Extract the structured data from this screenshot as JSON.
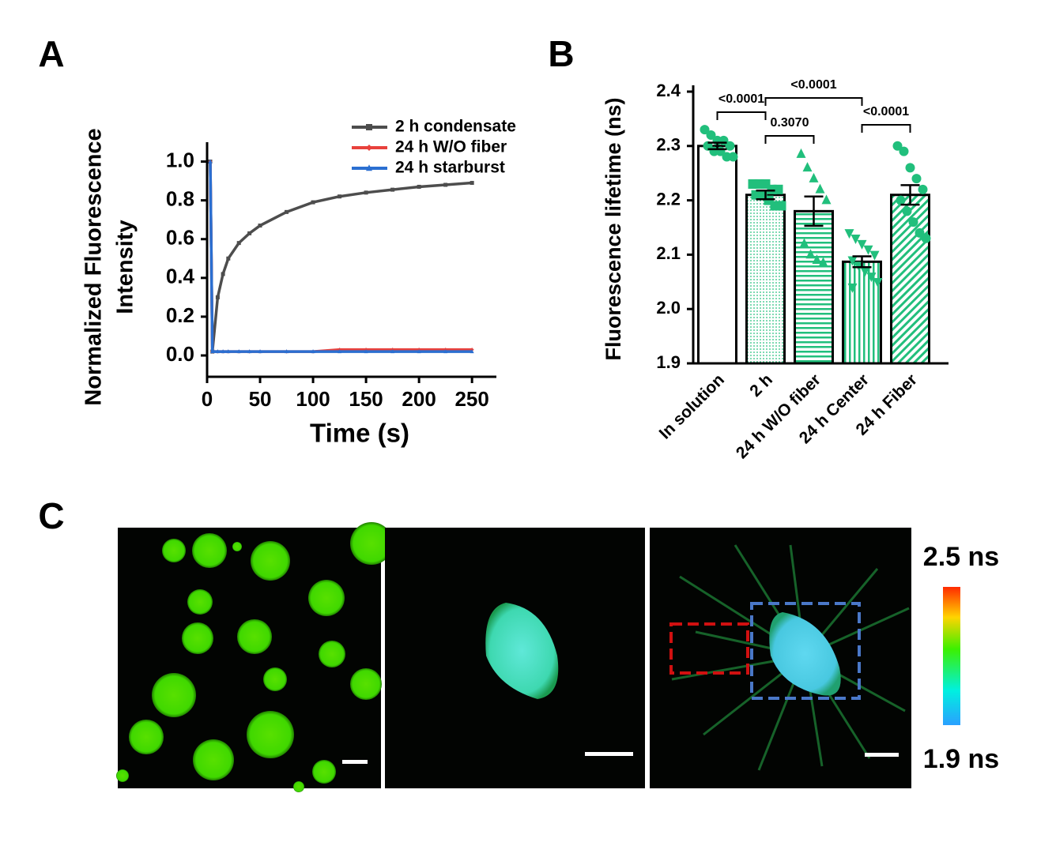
{
  "chart_data": [
    {
      "type": "line",
      "panel": "A",
      "x_label": "Time (s)",
      "y_label": [
        "Normalized Fluorescence",
        "Intensity"
      ],
      "x": [
        3,
        5,
        10,
        15,
        20,
        30,
        40,
        50,
        75,
        100,
        125,
        150,
        175,
        200,
        225,
        250
      ],
      "series": [
        {
          "name": "2 h condensate",
          "color": "#4d4d4d",
          "marker": "square",
          "values": [
            1.0,
            0.02,
            0.3,
            0.42,
            0.5,
            0.58,
            0.63,
            0.67,
            0.74,
            0.79,
            0.82,
            0.84,
            0.855,
            0.87,
            0.88,
            0.89
          ]
        },
        {
          "name": "24 h W/O fiber",
          "color": "#e8413c",
          "marker": "diamond",
          "values": [
            1.0,
            0.02,
            0.02,
            0.02,
            0.02,
            0.02,
            0.02,
            0.02,
            0.02,
            0.02,
            0.03,
            0.03,
            0.03,
            0.03,
            0.03,
            0.03
          ]
        },
        {
          "name": "24 h starburst",
          "color": "#2b6fd1",
          "marker": "triangle",
          "values": [
            1.0,
            0.02,
            0.02,
            0.02,
            0.02,
            0.02,
            0.02,
            0.02,
            0.02,
            0.02,
            0.02,
            0.02,
            0.02,
            0.02,
            0.02,
            0.02
          ]
        }
      ],
      "xlim": [
        0,
        273
      ],
      "xticks": [
        0,
        50,
        100,
        150,
        200,
        250
      ],
      "ylim": [
        -0.11,
        1.1
      ],
      "yticks": [
        {
          "value": 0,
          "label": "0.0"
        },
        0.2,
        0.4,
        0.6,
        0.8,
        {
          "value": 1,
          "label": "1.0"
        }
      ],
      "legend": "upper right"
    },
    {
      "type": "bar",
      "panel": "B",
      "y_label": "Fluorescence  lifetime (ns)",
      "categories": [
        "In solution",
        "2 h",
        "24 h W/O fiber",
        "24 h Center",
        "24 h Fiber"
      ],
      "values": [
        2.3,
        2.21,
        2.18,
        2.087,
        2.21
      ],
      "errors": [
        0.006,
        0.008,
        0.027,
        0.01,
        0.018
      ],
      "points": [
        [
          2.33,
          2.32,
          2.31,
          2.31,
          2.3,
          2.3,
          2.29,
          2.29,
          2.28,
          2.28
        ],
        [
          2.23,
          2.23,
          2.23,
          2.22,
          2.22,
          2.21,
          2.21,
          2.2,
          2.19,
          2.19
        ],
        [
          2.285,
          2.26,
          2.24,
          2.22,
          2.2,
          2.12,
          2.1,
          2.09,
          2.085
        ],
        [
          2.14,
          2.13,
          2.12,
          2.11,
          2.1,
          2.09,
          2.08,
          2.07,
          2.06,
          2.05,
          2.04
        ],
        [
          2.3,
          2.29,
          2.26,
          2.24,
          2.22,
          2.2,
          2.18,
          2.16,
          2.14,
          2.13
        ]
      ],
      "markers": [
        "circle",
        "square",
        "triangle",
        "triangle-down",
        "circle"
      ],
      "patterns": [
        "none",
        "dots",
        "horizontal",
        "vertical",
        "diagonal"
      ],
      "color": "#21bf7c",
      "comparisons": [
        {
          "from": 0,
          "to": 1,
          "label": "<0.0001"
        },
        {
          "from": 1,
          "to": 2,
          "label": "0.3070"
        },
        {
          "from": 1,
          "to": 3,
          "label": "<0.0001"
        },
        {
          "from": 3,
          "to": 4,
          "label": "<0.0001"
        }
      ],
      "ylim": [
        1.9,
        2.4
      ],
      "yticks": [
        1.9,
        {
          "value": 2,
          "label": "2.0"
        },
        2.1,
        2.2,
        2.3,
        2.4
      ]
    }
  ],
  "panel_c": {
    "label": "C",
    "colorbar": {
      "max_label": "2.5 ns",
      "min_label": "1.9 ns"
    }
  }
}
